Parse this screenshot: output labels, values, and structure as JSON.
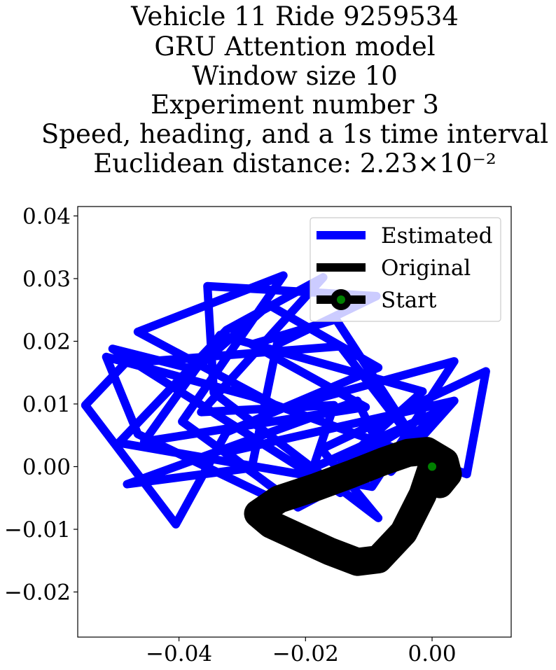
{
  "chart_data": {
    "type": "line",
    "title_lines": [
      "Vehicle 11 Ride 9259534",
      "GRU Attention model",
      "Window size 10",
      "Experiment number 3",
      "Speed, heading, and a 1s time interval",
      "Euclidean distance: 2.23×10⁻²"
    ],
    "xlabel": "",
    "ylabel": "",
    "xlim": [
      -0.056,
      0.0125
    ],
    "ylim": [
      -0.0272,
      0.0415
    ],
    "xticks": [
      -0.04,
      -0.02,
      0.0
    ],
    "xtick_labels": [
      "−0.04",
      "−0.02",
      "0.00"
    ],
    "yticks": [
      0.04,
      0.03,
      0.02,
      0.01,
      0.0,
      -0.01,
      -0.02
    ],
    "ytick_labels": [
      "0.04",
      "0.03",
      "0.02",
      "0.01",
      "0.00",
      "−0.01",
      "−0.02"
    ],
    "grid": false,
    "legend_position": "upper right",
    "series": [
      {
        "name": "Estimated",
        "color": "#0000ff",
        "points": [
          [
            0.0,
            0.0
          ],
          [
            -0.0152,
            0.0235
          ],
          [
            -0.0285,
            0.0195
          ],
          [
            -0.0105,
            0.0095
          ],
          [
            -0.0455,
            0.004
          ],
          [
            -0.0335,
            0.021
          ],
          [
            -0.0015,
            0.012
          ],
          [
            -0.0215,
            -0.006
          ],
          [
            -0.0395,
            0.0072
          ],
          [
            -0.0235,
            0.0305
          ],
          [
            -0.0465,
            0.0215
          ],
          [
            -0.0238,
            0.0093
          ],
          [
            0.0035,
            0.0168
          ],
          [
            -0.0095,
            -0.0032
          ],
          [
            -0.0495,
            0.0038
          ],
          [
            -0.0325,
            0.0218
          ],
          [
            -0.0172,
            0.0302
          ],
          [
            -0.0365,
            0.0087
          ],
          [
            -0.0155,
            0.0098
          ],
          [
            -0.0188,
            -0.0002
          ],
          [
            0.0025,
            0.0095
          ],
          [
            -0.0145,
            -0.0042
          ],
          [
            -0.0505,
            0.0188
          ],
          [
            -0.0375,
            0.0155
          ],
          [
            -0.0258,
            0.0258
          ],
          [
            -0.0085,
            0.0158
          ],
          [
            -0.0325,
            0.0055
          ],
          [
            -0.0405,
            -0.0092
          ],
          [
            -0.0548,
            0.0098
          ],
          [
            -0.0485,
            0.0165
          ],
          [
            -0.0145,
            0.0192
          ],
          [
            -0.0025,
            0.0035
          ],
          [
            -0.0212,
            -0.0065
          ],
          [
            -0.0325,
            0.0023
          ],
          [
            0.0035,
            0.0105
          ],
          [
            -0.0065,
            -0.0008
          ],
          [
            -0.0118,
            0.0105
          ],
          [
            -0.0482,
            -0.0028
          ],
          [
            -0.0285,
            -0.0002
          ],
          [
            -0.0245,
            0.0195
          ],
          [
            -0.0088,
            0.0272
          ],
          [
            -0.0355,
            0.0288
          ],
          [
            -0.0345,
            0.0118
          ],
          [
            -0.0085,
            -0.0082
          ],
          [
            -0.0175,
            0.0028
          ],
          [
            0.0085,
            0.0152
          ],
          [
            0.0055,
            -0.0012
          ],
          [
            -0.0285,
            0.0112
          ],
          [
            -0.0515,
            0.0175
          ],
          [
            -0.0465,
            0.0052
          ],
          [
            -0.0238,
            -0.0058
          ],
          [
            -0.0048,
            0.0058
          ],
          [
            0.0,
            0.0
          ]
        ]
      },
      {
        "name": "Original",
        "color": "#000000",
        "points": [
          [
            0.0,
            0.0
          ],
          [
            -0.0015,
            -0.0045
          ],
          [
            -0.0045,
            -0.0105
          ],
          [
            -0.0085,
            -0.0148
          ],
          [
            -0.0118,
            -0.0152
          ],
          [
            -0.0162,
            -0.0135
          ],
          [
            -0.0212,
            -0.0112
          ],
          [
            -0.0255,
            -0.0092
          ],
          [
            -0.0275,
            -0.0075
          ],
          [
            -0.0242,
            -0.0052
          ],
          [
            -0.0182,
            -0.0032
          ],
          [
            -0.0128,
            -0.0012
          ],
          [
            -0.0078,
            0.0008
          ],
          [
            -0.0038,
            0.0022
          ],
          [
            -0.0008,
            0.0025
          ],
          [
            0.002,
            0.0008
          ],
          [
            0.0025,
            -0.0012
          ],
          [
            0.0012,
            -0.0028
          ],
          [
            -0.0005,
            -0.0018
          ],
          [
            0.0,
            0.0
          ]
        ]
      }
    ],
    "start_point": {
      "name": "Start",
      "x": 0.0,
      "y": 0.0,
      "marker_color": "#008000",
      "edge_color": "#000000"
    }
  }
}
